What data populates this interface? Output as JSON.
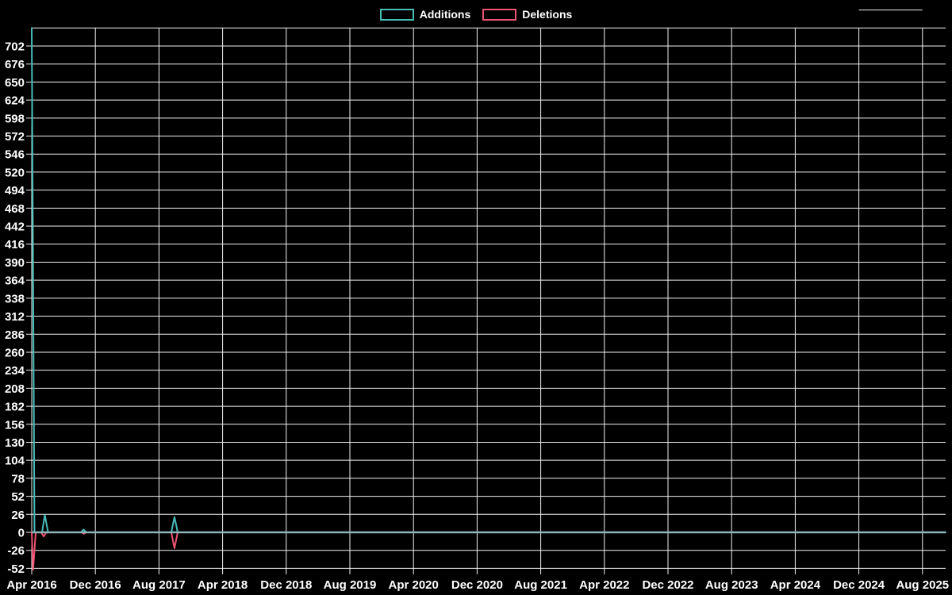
{
  "page": {
    "background": "#000000",
    "text_color": "#ffffff",
    "grid_color": "#f2f2f2",
    "zero_line_color": "#8EB4BA"
  },
  "legend": {
    "position": "top",
    "items": [
      {
        "label": "Additions",
        "color": "#48BDB8"
      },
      {
        "label": "Deletions",
        "color": "#EC5572"
      }
    ]
  },
  "chart_data": {
    "type": "line",
    "title": "",
    "xlabel": "",
    "ylabel": "",
    "grid": true,
    "legend_position": "top",
    "x_axis": {
      "tick_labels": [
        "Apr 2016",
        "Dec 2016",
        "Aug 2017",
        "Apr 2018",
        "Dec 2018",
        "Aug 2019",
        "Apr 2020",
        "Dec 2020",
        "Aug 2021",
        "Apr 2022",
        "Dec 2022",
        "Aug 2023",
        "Apr 2024",
        "Dec 2024",
        "Aug 2025"
      ],
      "tick_interval_months": 8,
      "xlim_months": [
        0,
        114.9
      ],
      "origin_month": "Apr 2016"
    },
    "y_axis": {
      "tick_values": [
        702,
        676,
        650,
        624,
        598,
        572,
        546,
        520,
        494,
        468,
        442,
        416,
        390,
        364,
        338,
        312,
        286,
        260,
        234,
        208,
        182,
        156,
        130,
        104,
        78,
        52,
        26,
        0,
        -26,
        -52
      ],
      "tick_step": 26,
      "unlabeled_gridline_at": 728,
      "top_partial_gridline_at": 754,
      "ylim": [
        -55,
        754
      ]
    },
    "series": [
      {
        "name": "Additions",
        "color": "#48BDB8",
        "points": [
          [
            0,
            728
          ],
          [
            0.35,
            0
          ],
          [
            1.3,
            0
          ],
          [
            1.65,
            25
          ],
          [
            2.05,
            0
          ],
          [
            6.2,
            0
          ],
          [
            6.5,
            4
          ],
          [
            6.85,
            0
          ],
          [
            17.55,
            0
          ],
          [
            17.95,
            22
          ],
          [
            18.35,
            0
          ],
          [
            114.9,
            0
          ]
        ]
      },
      {
        "name": "Deletions",
        "color": "#EC5572",
        "points": [
          [
            0,
            0
          ],
          [
            0.18,
            -54
          ],
          [
            0.5,
            0
          ],
          [
            1.2,
            0
          ],
          [
            1.5,
            -6
          ],
          [
            1.85,
            0
          ],
          [
            6.25,
            0
          ],
          [
            6.55,
            -2
          ],
          [
            6.85,
            0
          ],
          [
            17.55,
            0
          ],
          [
            17.95,
            -23
          ],
          [
            18.35,
            0
          ],
          [
            114.9,
            0
          ]
        ]
      }
    ],
    "notable_points": [
      {
        "approx_date": "Apr 2016",
        "additions": 728,
        "deletions": -54
      },
      {
        "approx_date": "May 2016",
        "additions": 25,
        "deletions": -6
      },
      {
        "approx_date": "Oct 2016",
        "additions": 4,
        "deletions": -2
      },
      {
        "approx_date": "Oct 2017",
        "additions": 22,
        "deletions": -23
      }
    ]
  }
}
